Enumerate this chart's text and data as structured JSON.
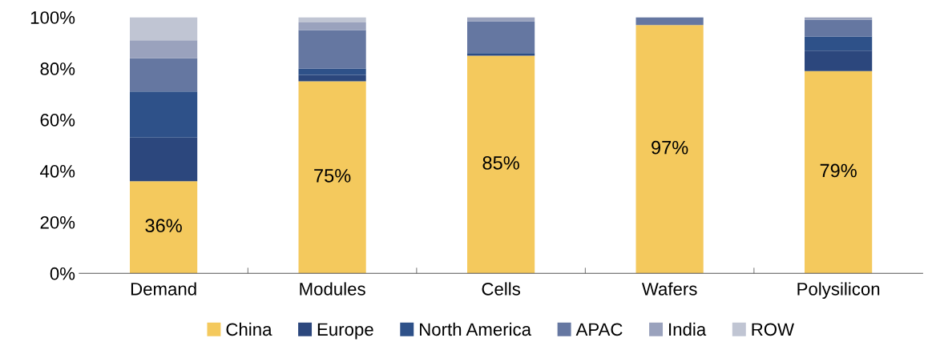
{
  "chart_data": {
    "type": "bar",
    "stacked": true,
    "categories": [
      "Demand",
      "Modules",
      "Cells",
      "Wafers",
      "Polysilicon"
    ],
    "series": [
      {
        "name": "China",
        "color": "#f4c95d",
        "values": [
          36,
          75,
          85,
          97,
          79
        ],
        "value_labels": [
          "36%",
          "75%",
          "85%",
          "97%",
          "79%"
        ]
      },
      {
        "name": "Europe",
        "color": "#2c477d",
        "values": [
          17,
          2.5,
          0.5,
          0,
          8
        ]
      },
      {
        "name": "North America",
        "color": "#2e5189",
        "values": [
          18,
          2.5,
          0.5,
          0,
          5.5
        ]
      },
      {
        "name": "APAC",
        "color": "#6577a1",
        "values": [
          13,
          15,
          12.5,
          3,
          6.5
        ]
      },
      {
        "name": "India",
        "color": "#9aa2bd",
        "values": [
          7,
          3,
          1.5,
          0,
          1
        ]
      },
      {
        "name": "ROW",
        "color": "#c0c5d3",
        "values": [
          9,
          2,
          0,
          0,
          0
        ]
      }
    ],
    "ylim": [
      0,
      100
    ],
    "yticks": [
      {
        "value": 0,
        "label": "0%"
      },
      {
        "value": 20,
        "label": "20%"
      },
      {
        "value": 40,
        "label": "40%"
      },
      {
        "value": 60,
        "label": "60%"
      },
      {
        "value": 80,
        "label": "80%"
      },
      {
        "value": 100,
        "label": "100%"
      }
    ],
    "legend": "bottom",
    "grid": false
  }
}
